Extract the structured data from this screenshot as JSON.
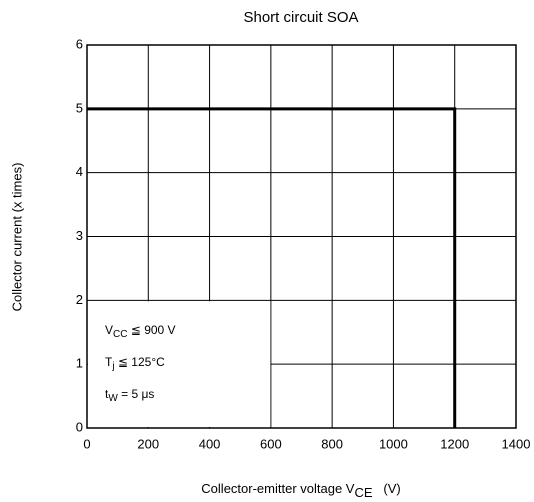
{
  "chart_data": {
    "type": "line",
    "title": "Short circuit SOA",
    "x_label": {
      "base": "Collector-emitter voltage   V",
      "sub": "CE",
      "rest": "   (V)"
    },
    "y_label": "Collector current    (x times)",
    "x": [
      0,
      1200,
      1200
    ],
    "series": [
      {
        "name": "SOA",
        "color": "#000000",
        "values": [
          5,
          5,
          0
        ]
      }
    ],
    "xlim": [
      0,
      1400
    ],
    "ylim": [
      0,
      6
    ],
    "xticks": [
      0,
      200,
      400,
      600,
      800,
      1000,
      1200,
      1400
    ],
    "yticks": [
      0,
      1,
      2,
      3,
      4,
      5,
      6
    ],
    "grid": true,
    "annotations": [
      {
        "base": "V",
        "sub": "CC",
        "rest": " ≦ 900 V"
      },
      {
        "base": "T",
        "sub": "j",
        "rest": " ≦ 125°C"
      },
      {
        "base": "t",
        "sub": "W",
        "rest": " = 5 μs"
      }
    ]
  }
}
